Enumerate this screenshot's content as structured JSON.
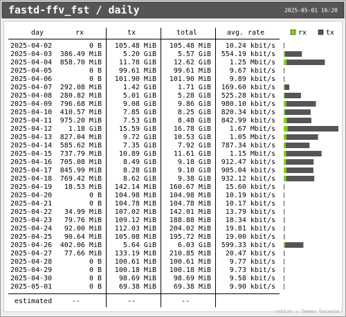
{
  "header": {
    "title": "fastd-ffv_fst / daily",
    "timestamp": "2025-05-01 16:20"
  },
  "legend": [
    "rx",
    "tx"
  ],
  "table": {
    "columns": [
      "day",
      "rx",
      "tx",
      "total",
      "avg. rate"
    ],
    "rows": [
      [
        "2025-04-02",
        "0 B",
        "105.48 MiB",
        "105.48 MiB",
        "10.24 kbit/s"
      ],
      [
        "2025-04-03",
        "386.49 MiB",
        "5.20 GiB",
        "5.57 GiB",
        "554.19 kbit/s"
      ],
      [
        "2025-04-04",
        "858.70 MiB",
        "11.78 GiB",
        "12.62 GiB",
        "1.25 Mbit/s"
      ],
      [
        "2025-04-05",
        "0 B",
        "99.61 MiB",
        "99.61 MiB",
        "9.67 kbit/s"
      ],
      [
        "2025-04-06",
        "0 B",
        "101.90 MiB",
        "101.90 MiB",
        "9.89 kbit/s"
      ],
      [
        "2025-04-07",
        "292.08 MiB",
        "1.42 GiB",
        "1.71 GiB",
        "169.60 kbit/s"
      ],
      [
        "2025-04-08",
        "280.82 MiB",
        "5.01 GiB",
        "5.28 GiB",
        "525.28 kbit/s"
      ],
      [
        "2025-04-09",
        "796.68 MiB",
        "9.08 GiB",
        "9.86 GiB",
        "980.10 kbit/s"
      ],
      [
        "2025-04-10",
        "410.57 MiB",
        "7.85 GiB",
        "8.25 GiB",
        "820.34 kbit/s"
      ],
      [
        "2025-04-11",
        "975.20 MiB",
        "7.53 GiB",
        "8.48 GiB",
        "842.99 kbit/s"
      ],
      [
        "2025-04-12",
        "1.18 GiB",
        "15.59 GiB",
        "16.78 GiB",
        "1.67 Mbit/s"
      ],
      [
        "2025-04-13",
        "827.04 MiB",
        "9.72 GiB",
        "10.53 GiB",
        "1.05 Mbit/s"
      ],
      [
        "2025-04-14",
        "585.62 MiB",
        "7.35 GiB",
        "7.92 GiB",
        "787.34 kbit/s"
      ],
      [
        "2025-04-15",
        "737.79 MiB",
        "10.89 GiB",
        "11.61 GiB",
        "1.15 Mbit/s"
      ],
      [
        "2025-04-16",
        "705.08 MiB",
        "8.49 GiB",
        "9.18 GiB",
        "912.47 kbit/s"
      ],
      [
        "2025-04-17",
        "845.99 MiB",
        "8.28 GiB",
        "9.10 GiB",
        "905.04 kbit/s"
      ],
      [
        "2025-04-18",
        "769.42 MiB",
        "8.62 GiB",
        "9.38 GiB",
        "932.12 kbit/s"
      ],
      [
        "2025-04-19",
        "18.53 MiB",
        "142.14 MiB",
        "160.67 MiB",
        "15.60 kbit/s"
      ],
      [
        "2025-04-20",
        "0 B",
        "104.98 MiB",
        "104.98 MiB",
        "10.19 kbit/s"
      ],
      [
        "2025-04-21",
        "0 B",
        "104.78 MiB",
        "104.78 MiB",
        "10.17 kbit/s"
      ],
      [
        "2025-04-22",
        "34.99 MiB",
        "107.02 MiB",
        "142.01 MiB",
        "13.79 kbit/s"
      ],
      [
        "2025-04-23",
        "79.76 MiB",
        "109.12 MiB",
        "188.88 MiB",
        "18.34 kbit/s"
      ],
      [
        "2025-04-24",
        "92.00 MiB",
        "112.03 MiB",
        "204.02 MiB",
        "19.81 kbit/s"
      ],
      [
        "2025-04-25",
        "90.64 MiB",
        "105.08 MiB",
        "195.72 MiB",
        "19.00 kbit/s"
      ],
      [
        "2025-04-26",
        "402.06 MiB",
        "5.64 GiB",
        "6.03 GiB",
        "599.33 kbit/s"
      ],
      [
        "2025-04-27",
        "77.66 MiB",
        "133.19 MiB",
        "210.85 MiB",
        "20.47 kbit/s"
      ],
      [
        "2025-04-28",
        "0 B",
        "100.61 MiB",
        "100.61 MiB",
        "9.77 kbit/s"
      ],
      [
        "2025-04-29",
        "0 B",
        "100.18 MiB",
        "100.18 MiB",
        "9.73 kbit/s"
      ],
      [
        "2025-04-30",
        "0 B",
        "98.69 MiB",
        "98.69 MiB",
        "9.58 kbit/s"
      ],
      [
        "2025-05-01",
        "0 B",
        "69.38 MiB",
        "69.38 MiB",
        "9.90 kbit/s"
      ]
    ],
    "estimated": [
      "estimated",
      "--",
      "--",
      "--"
    ]
  },
  "footer": "vnStat / Teemu Toivola"
}
